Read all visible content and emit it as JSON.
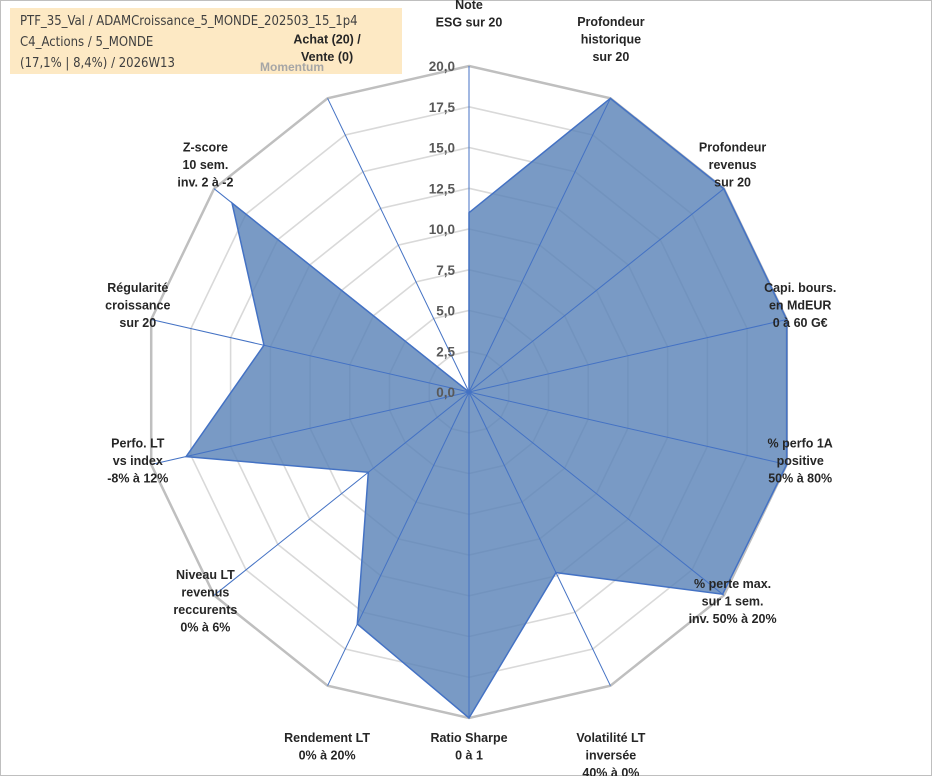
{
  "header": {
    "line1": "PTF_35_Val / ADAMCroissance_5_MONDE_202503_15_1p4",
    "line2": "C4_Actions / 5_MONDE",
    "line3": "(17,1% | 8,4%) / 2026W13",
    "momentum": "Momentum"
  },
  "colors": {
    "fill": "#5b84b8",
    "fill_opacity": 0.82,
    "outline": "#4472c4",
    "spoke": "#4472c4",
    "gridline": "#d9d9d9",
    "outer_ring": "#bfbfbf",
    "info_box": "#fde9c4"
  },
  "chart_data": {
    "type": "radar",
    "title": "",
    "rmin": 0,
    "rmax": 20,
    "tick_step": 2.5,
    "tick_labels": [
      "0,0",
      "2,5",
      "5,0",
      "7,5",
      "10,0",
      "12,5",
      "15,0",
      "17,5",
      "20,0"
    ],
    "categories": [
      [
        "Note",
        "ESG sur 20"
      ],
      [
        "Profondeur",
        "historique",
        "sur 20"
      ],
      [
        "Profondeur",
        "revenus",
        "sur 20"
      ],
      [
        "Capi. bours.",
        "en MdEUR",
        "0 à 60 G€"
      ],
      [
        "% perfo 1A",
        "positive",
        "50% à 80%"
      ],
      [
        "% perte max.",
        "sur 1 sem.",
        "inv. 50% à 20%"
      ],
      [
        "Volatilité LT",
        "inversée",
        "40% à 0%"
      ],
      [
        "Ratio Sharpe",
        "0 à 1"
      ],
      [
        "Rendement LT",
        "0% à 20%"
      ],
      [
        "Niveau LT",
        "revenus",
        "reccurents",
        "0% à 6%"
      ],
      [
        "Perfo. LT",
        "vs index",
        "-8% à 12%"
      ],
      [
        "Régularité",
        "croissance",
        "sur 20"
      ],
      [
        "Z-score",
        "10 sem.",
        "inv. 2 à -2"
      ],
      [
        "Achat (20) /",
        "Vente (0)"
      ]
    ],
    "series": [
      {
        "values": [
          11.0,
          20.0,
          20.0,
          20.0,
          20.0,
          19.9,
          12.3,
          20.0,
          15.8,
          7.9,
          17.8,
          12.9,
          18.6,
          0.0
        ]
      }
    ],
    "grid": true,
    "legend": "none"
  }
}
